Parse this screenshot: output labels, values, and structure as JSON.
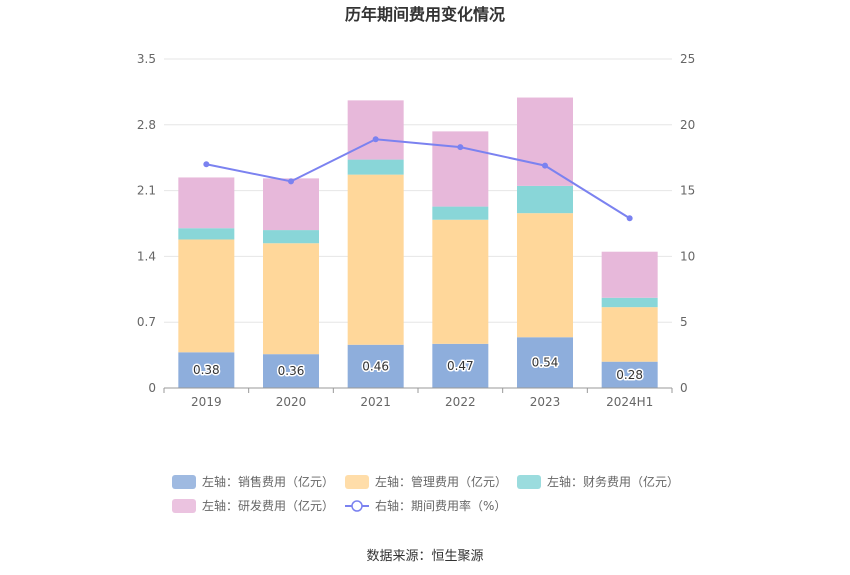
{
  "chart_data": {
    "type": "bar",
    "title": "历年期间费用变化情况",
    "categories": [
      "2019",
      "2020",
      "2021",
      "2022",
      "2023",
      "2024H1"
    ],
    "left_axis": {
      "ylim": [
        0,
        3.5
      ],
      "ticks": [
        "0",
        "0.7",
        "1.4",
        "2.1",
        "2.8",
        "3.5"
      ]
    },
    "right_axis": {
      "ylim": [
        0,
        25
      ],
      "ticks": [
        "0",
        "5",
        "10",
        "15",
        "20",
        "25"
      ]
    },
    "stacked_series": [
      {
        "name": "左轴：销售费用（亿元）",
        "color": "#8eaedc",
        "values": [
          0.38,
          0.36,
          0.46,
          0.47,
          0.54,
          0.28
        ],
        "labels": [
          "0.38",
          "0.36",
          "0.46",
          "0.47",
          "0.54",
          "0.28"
        ]
      },
      {
        "name": "左轴：管理费用（亿元）",
        "color": "#ffd79a",
        "values": [
          1.2,
          1.18,
          1.81,
          1.32,
          1.32,
          0.58
        ]
      },
      {
        "name": "左轴：财务费用（亿元）",
        "color": "#89d6d8",
        "values": [
          0.12,
          0.14,
          0.16,
          0.14,
          0.29,
          0.1
        ]
      },
      {
        "name": "左轴：研发费用（亿元）",
        "color": "#e7b8da",
        "values": [
          0.54,
          0.55,
          0.63,
          0.8,
          0.94,
          0.49
        ]
      }
    ],
    "line_series": {
      "name": "右轴：期间费用率（%）",
      "color": "#7b82f0",
      "values": [
        17.0,
        15.7,
        18.9,
        18.3,
        16.9,
        12.9
      ]
    },
    "grid": true,
    "legend": "bottom"
  },
  "source": "数据来源：恒生聚源"
}
